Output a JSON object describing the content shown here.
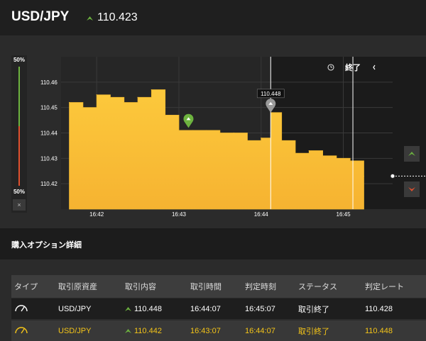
{
  "header": {
    "pair": "USD/JPY",
    "quote": "110.423"
  },
  "gauge": {
    "top_label": "50%",
    "bottom_label": "50%",
    "close_label": "×"
  },
  "chart": {
    "y_ticks": [
      "110.46",
      "110.45",
      "110.44",
      "110.43",
      "110.42"
    ],
    "x_ticks": [
      "16:42",
      "16:43",
      "16:44",
      "16:45"
    ],
    "expiry_label": "終了",
    "marker_value": "110.448",
    "colors": {
      "area": "#fcbf3a",
      "up": "#6db33f",
      "down": "#e0502e"
    }
  },
  "chart_data": {
    "type": "area",
    "x": [
      "16:41:40",
      "16:41:50",
      "16:42:00",
      "16:42:10",
      "16:42:20",
      "16:42:30",
      "16:42:40",
      "16:42:50",
      "16:43:00",
      "16:43:10",
      "16:43:20",
      "16:43:30",
      "16:43:40",
      "16:43:50",
      "16:44:00",
      "16:44:07",
      "16:44:15",
      "16:44:25",
      "16:44:35",
      "16:44:45",
      "16:44:55",
      "16:45:05",
      "16:45:15"
    ],
    "values": [
      110.452,
      110.45,
      110.455,
      110.454,
      110.452,
      110.454,
      110.457,
      110.447,
      110.441,
      110.441,
      110.441,
      110.44,
      110.44,
      110.437,
      110.438,
      110.448,
      110.437,
      110.432,
      110.433,
      110.431,
      110.43,
      110.429,
      110.423
    ],
    "ylim": [
      110.41,
      110.47
    ],
    "xlabel": "",
    "ylabel": ""
  },
  "section": {
    "title": "購入オプション詳細"
  },
  "table": {
    "headers": [
      "タイプ",
      "取引原資産",
      "取引内容",
      "取引時間",
      "判定時刻",
      "ステータス",
      "判定レート"
    ],
    "rows": [
      {
        "asset": "USD/JPY",
        "content": "110.448",
        "trade_time": "16:44:07",
        "judge_time": "16:45:07",
        "status": "取引終了",
        "rate": "110.428"
      },
      {
        "asset": "USD/JPY",
        "content": "110.442",
        "trade_time": "16:43:07",
        "judge_time": "16:44:07",
        "status": "取引終了",
        "rate": "110.448"
      }
    ]
  }
}
